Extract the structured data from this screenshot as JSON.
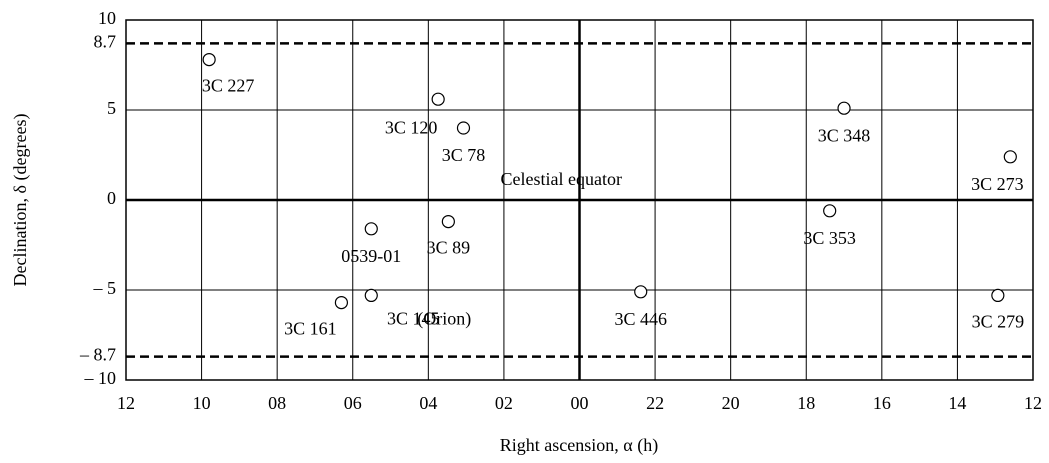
{
  "chart_data": {
    "type": "scatter",
    "xlabel": "Right ascension, α (h)",
    "ylabel": "Declination, δ (degrees)",
    "xlim": [
      12,
      -12
    ],
    "xticks": [
      12,
      10,
      {
        "value": 8,
        "label": "08"
      },
      {
        "value": 6,
        "label": "06"
      },
      {
        "value": 4,
        "label": "04"
      },
      {
        "value": 2,
        "label": "02"
      },
      {
        "value": 0,
        "label": "00"
      },
      {
        "value": -2,
        "label": "22"
      },
      {
        "value": -4,
        "label": "20"
      },
      {
        "value": -6,
        "label": "18"
      },
      {
        "value": -8,
        "label": "16"
      },
      {
        "value": -10,
        "label": "14"
      },
      {
        "value": -12,
        "label": "12"
      }
    ],
    "ylim": [
      -10,
      10
    ],
    "yticks": [
      10,
      8.7,
      5,
      0,
      {
        "value": -5,
        "label": "– 5"
      },
      {
        "value": -8.7,
        "label": "– 8.7"
      },
      {
        "value": -10,
        "label": "– 10"
      }
    ],
    "ref_lines": [
      8.7,
      -8.7
    ],
    "grid": true,
    "series": [
      {
        "color": "#000000",
        "labels": [
          "3C 227",
          "3C 120",
          "3C 78",
          "3C 348",
          "3C 273",
          "0539-01",
          "3C 89",
          "3C 353",
          "3C 161",
          "3C 145",
          "3C 446",
          "3C 279"
        ],
        "x": [
          9.8,
          3.74,
          3.07,
          -7.0,
          -11.4,
          5.51,
          3.47,
          -6.62,
          6.3,
          5.51,
          -1.62,
          -11.07
        ],
        "values": [
          7.8,
          5.6,
          4.0,
          5.1,
          2.4,
          -1.6,
          -1.2,
          -0.6,
          -5.7,
          -5.3,
          -5.1,
          -5.3
        ]
      }
    ],
    "annotations": [
      "Celestial equator",
      "(Orion)"
    ]
  }
}
